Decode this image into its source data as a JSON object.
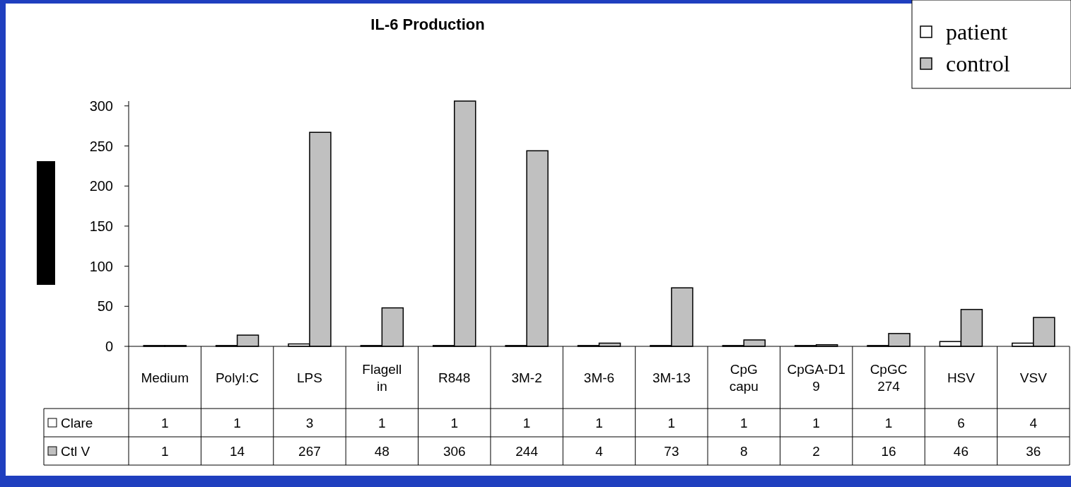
{
  "chart_data": {
    "type": "bar",
    "title": "IL-6 Production",
    "categories": [
      "Medium",
      "PolyI:C",
      "LPS",
      "Flagellin",
      "R848",
      "3M-2",
      "3M-6",
      "3M-13",
      "CpG capu",
      "CpGA-D19",
      "CpGC 274",
      "HSV",
      "VSV"
    ],
    "series": [
      {
        "name": "patient",
        "color": "#ffffff",
        "values": [
          1,
          1,
          3,
          1,
          1,
          1,
          1,
          1,
          1,
          1,
          1,
          6,
          4
        ]
      },
      {
        "name": "control",
        "color": "#c0c0c0",
        "values": [
          1,
          14,
          267,
          48,
          306,
          244,
          4,
          73,
          8,
          2,
          16,
          46,
          36
        ]
      }
    ],
    "annotations": [
      "Clare",
      "Ctl V"
    ],
    "ylim": [
      0,
      306
    ],
    "yticks": [
      0,
      50,
      100,
      150,
      200,
      250,
      300
    ],
    "data_labels": true,
    "legend": "top right",
    "grid": false
  }
}
